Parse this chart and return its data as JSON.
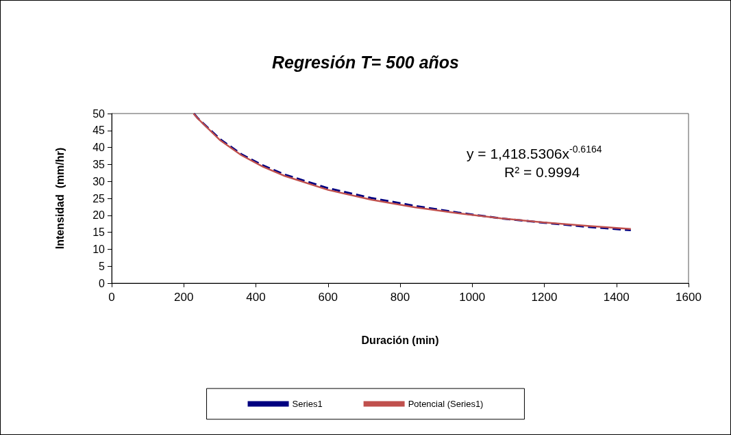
{
  "chart_data": {
    "type": "line",
    "title": "Regresión T= 500 años",
    "xlabel": "Duración (min)",
    "ylabel": "Intensidad  (mm/hr)",
    "annotations": [
      "y = 1,418.5306x$^{-0.6164}$",
      "R² = 0.9994"
    ],
    "series": [
      {
        "name": "Series1",
        "color": "#000080",
        "line_style": "dashed",
        "x": [
          228,
          240,
          300,
          360,
          420,
          480,
          600,
          720,
          840,
          960,
          1080,
          1200,
          1320,
          1440
        ],
        "values": [
          50,
          48.5,
          42.5,
          38.0,
          34.7,
          32.0,
          28.0,
          25.1,
          22.8,
          20.8,
          19.1,
          17.8,
          16.6,
          15.6
        ]
      },
      {
        "name": "Potencial (Series1)",
        "type": "line",
        "color": "#c0504d",
        "line_style": "solid",
        "x": [
          227,
          240,
          300,
          360,
          420,
          480,
          600,
          720,
          840,
          960,
          1080,
          1200,
          1320,
          1440
        ],
        "values": [
          50,
          48.4,
          42.2,
          37.7,
          34.3,
          31.6,
          27.5,
          24.6,
          22.4,
          20.6,
          19.1,
          17.9,
          16.9,
          16.0
        ]
      }
    ],
    "xlim": [
      0,
      1600
    ],
    "xticks": [
      0,
      200,
      400,
      600,
      800,
      1000,
      1200,
      1400,
      1600
    ],
    "ylim": [
      0,
      50
    ],
    "yticks": [
      0,
      5,
      10,
      15,
      20,
      25,
      30,
      35,
      40,
      45,
      50
    ],
    "grid": false,
    "legend": "bottom",
    "marker": "none"
  }
}
